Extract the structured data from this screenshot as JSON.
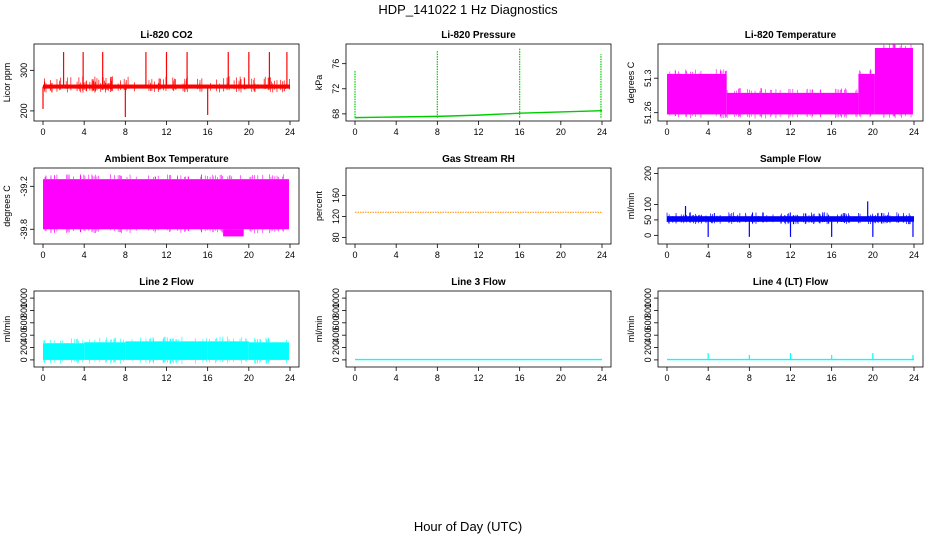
{
  "title": "HDP_141022  1 Hz Diagnostics",
  "xlabel": "Hour of Day (UTC)",
  "chart_data": [
    {
      "type": "line",
      "title": "Li-820 CO2",
      "ylabel": "Licor ppm",
      "color": "#ff0000",
      "xlim": [
        0,
        24
      ],
      "xticks": [
        0,
        4,
        8,
        12,
        16,
        20,
        24
      ],
      "ylim": [
        185,
        355
      ],
      "yticks": [
        200,
        300
      ],
      "band": {
        "base": [
          255,
          265
        ],
        "jitter_low": [
          245,
          255
        ],
        "noise_hi": 285
      },
      "series": [
        {
          "name": "CO2",
          "x": [
            0,
            2,
            3,
            4,
            6,
            8,
            10,
            12,
            14,
            16,
            18,
            20,
            22,
            24
          ],
          "y": [
            262,
            262,
            262,
            262,
            262,
            262,
            262,
            262,
            262,
            262,
            262,
            262,
            262,
            262
          ]
        }
      ],
      "spikes": [
        {
          "x": 0.0,
          "y": 205
        },
        {
          "x": 2.0,
          "y": 345
        },
        {
          "x": 3.9,
          "y": 345
        },
        {
          "x": 5.8,
          "y": 345
        },
        {
          "x": 8.0,
          "y": 185
        },
        {
          "x": 10.0,
          "y": 345
        },
        {
          "x": 12.0,
          "y": 345
        },
        {
          "x": 14.0,
          "y": 345
        },
        {
          "x": 16.0,
          "y": 190
        },
        {
          "x": 18.0,
          "y": 345
        },
        {
          "x": 20.0,
          "y": 345
        },
        {
          "x": 22.0,
          "y": 345
        },
        {
          "x": 23.7,
          "y": 345
        }
      ]
    },
    {
      "type": "line",
      "title": "Li-820 Pressure",
      "ylabel": "kPa",
      "color": "#00cc00",
      "xlim": [
        0,
        24
      ],
      "xticks": [
        0,
        4,
        8,
        12,
        16,
        20,
        24
      ],
      "ylim": [
        67.5,
        78.5
      ],
      "yticks": [
        68,
        72,
        76
      ],
      "series": [
        {
          "name": "Pressure",
          "x": [
            0,
            4,
            8,
            12,
            16,
            20,
            24
          ],
          "y": [
            67.4,
            67.5,
            67.6,
            67.8,
            68.1,
            68.3,
            68.5
          ]
        }
      ],
      "spikes": [
        {
          "x": 0.0,
          "y": 75
        },
        {
          "x": 8.0,
          "y": 78
        },
        {
          "x": 16.0,
          "y": 78.5
        },
        {
          "x": 23.9,
          "y": 77.5
        }
      ]
    },
    {
      "type": "area",
      "title": "Li-820 Temperature",
      "ylabel": "degrees C",
      "color": "#ff00ff",
      "xlim": [
        0,
        24
      ],
      "xticks": [
        0,
        4,
        8,
        12,
        16,
        20,
        24
      ],
      "ylim": [
        51.255,
        51.335
      ],
      "yticks": [
        51.26,
        51.3
      ],
      "band_segments": [
        {
          "x0": 0,
          "x1": 5.8,
          "low": 51.258,
          "high": 51.305
        },
        {
          "x0": 5.8,
          "x1": 18.6,
          "low": 51.258,
          "high": 51.283
        },
        {
          "x0": 18.6,
          "x1": 20.2,
          "low": 51.258,
          "high": 51.305
        },
        {
          "x0": 20.2,
          "x1": 23.9,
          "low": 51.258,
          "high": 51.335
        }
      ]
    },
    {
      "type": "area",
      "title": "Ambient Box Temperature",
      "ylabel": "degrees C",
      "color": "#ff00ff",
      "xlim": [
        0,
        24
      ],
      "xticks": [
        0,
        4,
        8,
        12,
        16,
        20,
        24
      ],
      "ylim": [
        -39.95,
        -39.0
      ],
      "yticks": [
        -39.8,
        -39.2
      ],
      "band_segments": [
        {
          "x0": 0,
          "x1": 23.9,
          "low": -39.8,
          "high": -39.1
        }
      ],
      "dips": [
        {
          "x0": 17.5,
          "x1": 19.5,
          "y": -39.9
        }
      ]
    },
    {
      "type": "line",
      "title": "Gas Stream RH",
      "ylabel": "percent",
      "color": "#ff8c00",
      "xlim": [
        0,
        24
      ],
      "xticks": [
        0,
        4,
        8,
        12,
        16,
        20,
        24
      ],
      "ylim": [
        75,
        205
      ],
      "yticks": [
        80,
        120,
        160
      ],
      "series": [
        {
          "name": "RH",
          "x": [
            0,
            24
          ],
          "y": [
            128,
            128
          ]
        }
      ]
    },
    {
      "type": "line",
      "title": "Sample Flow",
      "ylabel": "ml/min",
      "color": "#0000ff",
      "xlim": [
        0,
        24
      ],
      "xticks": [
        0,
        4,
        8,
        12,
        16,
        20,
        24
      ],
      "ylim": [
        -15,
        205
      ],
      "yticks": [
        0,
        50,
        100,
        200
      ],
      "band": {
        "base": [
          44,
          62
        ],
        "jitter_low": [
          36,
          44
        ],
        "noise_hi": 75
      },
      "series": [
        {
          "name": "Flow",
          "x": [
            0,
            24
          ],
          "y": [
            52,
            52
          ]
        }
      ],
      "spikes": [
        {
          "x": 1.8,
          "y": 95
        },
        {
          "x": 4.0,
          "y": -5
        },
        {
          "x": 8.0,
          "y": -5
        },
        {
          "x": 12.0,
          "y": -5
        },
        {
          "x": 16.0,
          "y": -5
        },
        {
          "x": 19.5,
          "y": 110
        },
        {
          "x": 20.0,
          "y": -5
        },
        {
          "x": 23.9,
          "y": -5
        }
      ]
    },
    {
      "type": "area",
      "title": "Line 2 Flow",
      "ylabel": "ml/min",
      "color": "#00ffff",
      "xlim": [
        0,
        24
      ],
      "xticks": [
        0,
        4,
        8,
        12,
        16,
        20,
        24
      ],
      "ylim": [
        -50,
        1050
      ],
      "yticks": [
        0,
        200,
        400,
        600,
        800,
        1000
      ],
      "band_segments": [
        {
          "x0": 0,
          "x1": 4,
          "low": 0,
          "high": 270
        },
        {
          "x0": 4,
          "x1": 8,
          "low": 0,
          "high": 285
        },
        {
          "x0": 8,
          "x1": 12,
          "low": 0,
          "high": 300
        },
        {
          "x0": 12,
          "x1": 16,
          "low": 0,
          "high": 300
        },
        {
          "x0": 16,
          "x1": 20,
          "low": 0,
          "high": 300
        },
        {
          "x0": 20,
          "x1": 23.9,
          "low": 0,
          "high": 285
        }
      ]
    },
    {
      "type": "line",
      "title": "Line 3 Flow",
      "ylabel": "ml/min",
      "color": "#00ffff",
      "xlim": [
        0,
        24
      ],
      "xticks": [
        0,
        4,
        8,
        12,
        16,
        20,
        24
      ],
      "ylim": [
        -50,
        1050
      ],
      "yticks": [
        0,
        200,
        400,
        600,
        800,
        1000
      ],
      "series": [
        {
          "name": "Flow",
          "x": [
            0,
            24
          ],
          "y": [
            5,
            5
          ]
        }
      ]
    },
    {
      "type": "line",
      "title": "Line 4 (LT) Flow",
      "ylabel": "ml/min",
      "color": "#00ffff",
      "xlim": [
        0,
        24
      ],
      "xticks": [
        0,
        4,
        8,
        12,
        16,
        20,
        24
      ],
      "ylim": [
        -50,
        1050
      ],
      "yticks": [
        0,
        200,
        400,
        600,
        800,
        1000
      ],
      "series": [
        {
          "name": "Flow",
          "x": [
            0,
            24
          ],
          "y": [
            5,
            5
          ]
        }
      ],
      "spikes": [
        {
          "x": 4.0,
          "y": 110
        },
        {
          "x": 8.0,
          "y": 80
        },
        {
          "x": 12.0,
          "y": 110
        },
        {
          "x": 16.0,
          "y": 80
        },
        {
          "x": 20.0,
          "y": 110
        },
        {
          "x": 23.9,
          "y": 80
        }
      ]
    }
  ]
}
